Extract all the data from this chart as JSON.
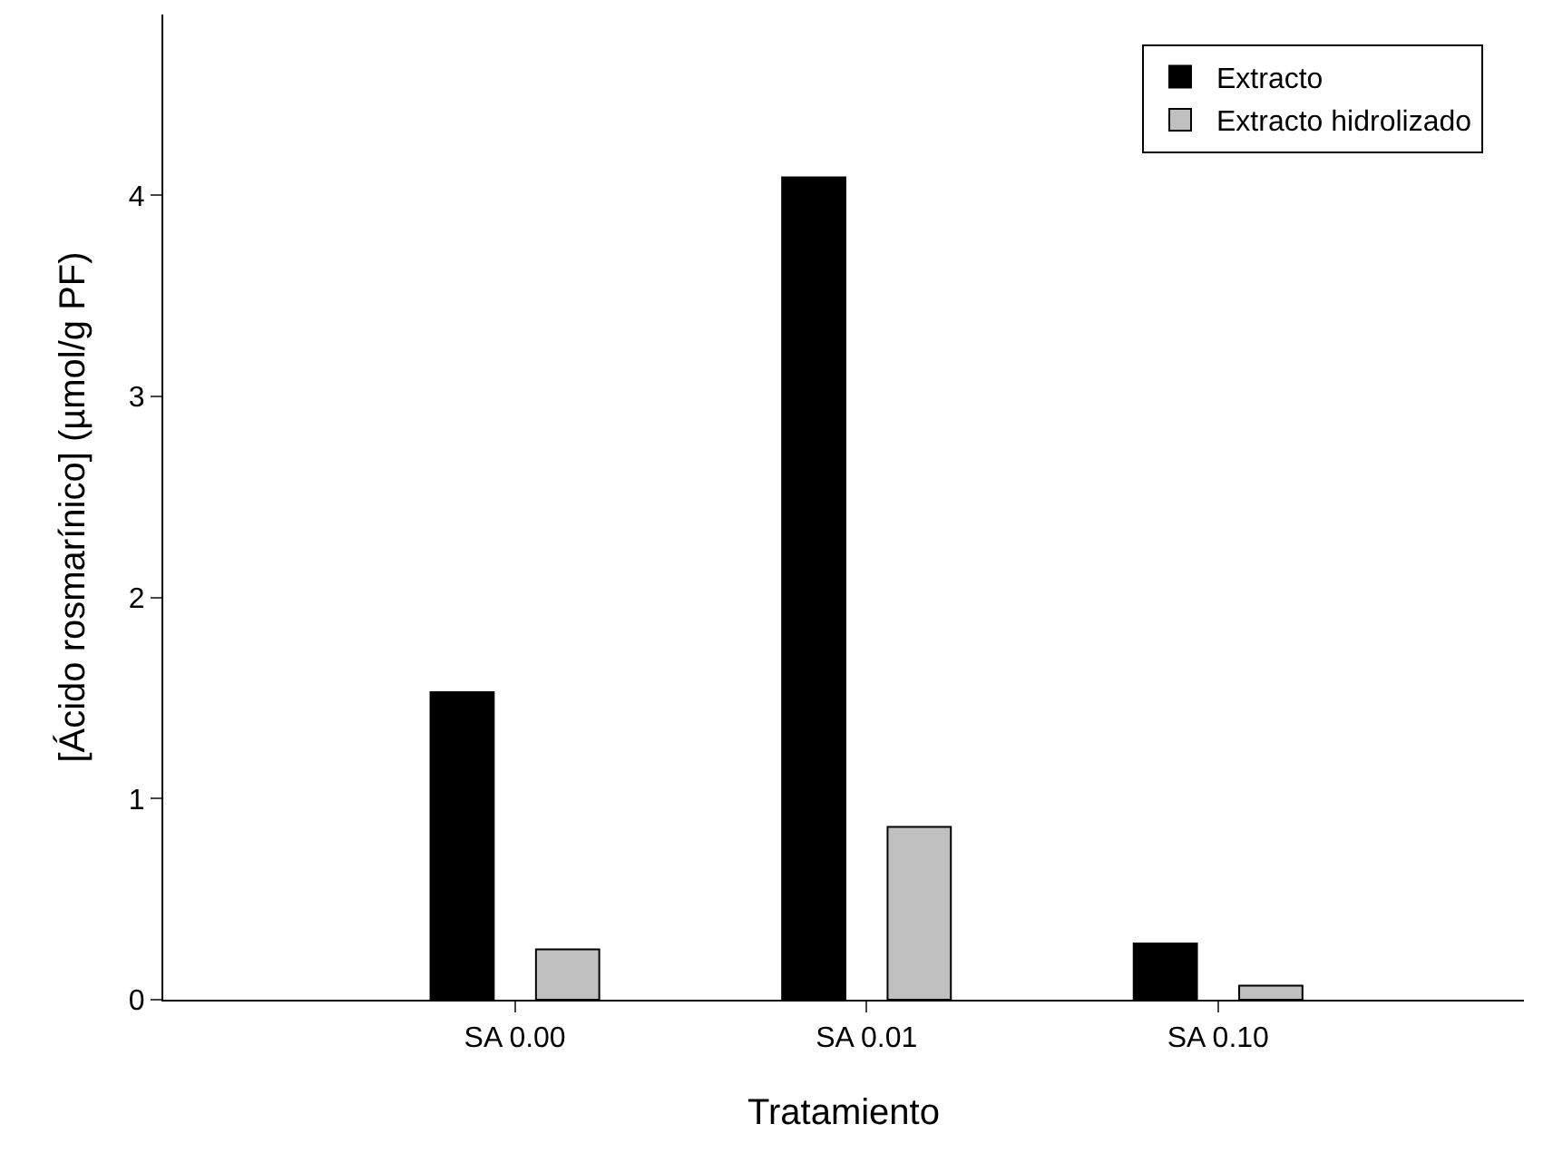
{
  "chart_data": {
    "type": "bar",
    "xlabel": "Tratamiento",
    "ylabel": "[Ácido rosmarínico] (µmol/g PF)",
    "categories": [
      "SA 0.00",
      "SA 0.01",
      "SA 0.10"
    ],
    "series": [
      {
        "name": "Extracto",
        "color": "#000000",
        "values": [
          1.53,
          4.09,
          0.28
        ]
      },
      {
        "name": "Extracto hidrolizado",
        "color": "#c0c0c0",
        "values": [
          0.25,
          0.86,
          0.07
        ]
      }
    ],
    "ylim": [
      0,
      4.9
    ],
    "yticks": [
      0,
      1,
      2,
      3,
      4
    ],
    "legend": "top right"
  }
}
